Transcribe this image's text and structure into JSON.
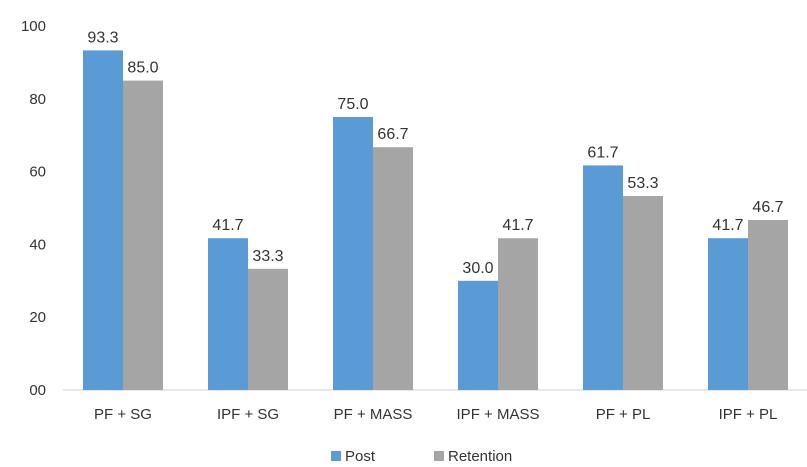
{
  "chart_data": {
    "type": "bar",
    "categories": [
      "PF + SG",
      "IPF + SG",
      "PF + MASS",
      "IPF + MASS",
      "PF + PL",
      "IPF + PL"
    ],
    "series": [
      {
        "name": "Post",
        "values": [
          93.3,
          41.7,
          75.0,
          30.0,
          61.7,
          41.7
        ],
        "labels": [
          "93.3",
          "41.7",
          "75.0",
          "30.0",
          "61.7",
          "41.7"
        ],
        "color": "#5b9bd5"
      },
      {
        "name": "Retention",
        "values": [
          85.0,
          33.3,
          66.7,
          41.7,
          53.3,
          46.7
        ],
        "labels": [
          "85.0",
          "33.3",
          "66.7",
          "41.7",
          "53.3",
          "46.7"
        ],
        "color": "#a5a5a5"
      }
    ],
    "yticks": [
      0,
      20,
      40,
      60,
      80,
      100
    ],
    "ytick_labels": [
      "00",
      "20",
      "40",
      "60",
      "80",
      "100"
    ],
    "ylim": [
      0,
      100
    ],
    "grid": false,
    "legend_position": "bottom",
    "title": "",
    "xlabel": "",
    "ylabel": ""
  }
}
